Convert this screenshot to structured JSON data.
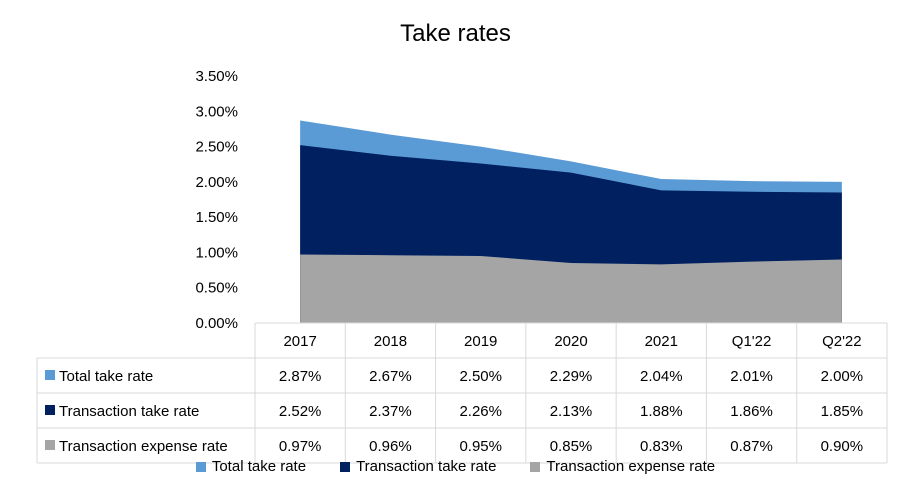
{
  "chart_data": {
    "type": "area",
    "title": "Take rates",
    "categories": [
      "2017",
      "2018",
      "2019",
      "2020",
      "2021",
      "Q1'22",
      "Q2'22"
    ],
    "ylim": [
      0,
      3.5
    ],
    "ytick_labels": [
      "0.00%",
      "0.50%",
      "1.00%",
      "1.50%",
      "2.00%",
      "2.50%",
      "3.00%",
      "3.50%"
    ],
    "series": [
      {
        "name": "Total take rate",
        "color": "#5B9BD5",
        "values": [
          2.87,
          2.67,
          2.5,
          2.29,
          2.04,
          2.01,
          2.0
        ],
        "labels": [
          "2.87%",
          "2.67%",
          "2.50%",
          "2.29%",
          "2.04%",
          "2.01%",
          "2.00%"
        ]
      },
      {
        "name": "Transaction take rate",
        "color": "#002060",
        "values": [
          2.52,
          2.37,
          2.26,
          2.13,
          1.88,
          1.86,
          1.85
        ],
        "labels": [
          "2.52%",
          "2.37%",
          "2.26%",
          "2.13%",
          "1.88%",
          "1.86%",
          "1.85%"
        ]
      },
      {
        "name": "Transaction expense rate",
        "color": "#A5A5A5",
        "values": [
          0.97,
          0.96,
          0.95,
          0.85,
          0.83,
          0.87,
          0.9
        ],
        "labels": [
          "0.97%",
          "0.96%",
          "0.95%",
          "0.85%",
          "0.83%",
          "0.87%",
          "0.90%"
        ]
      }
    ],
    "legend": "bottom",
    "data_table": true
  }
}
